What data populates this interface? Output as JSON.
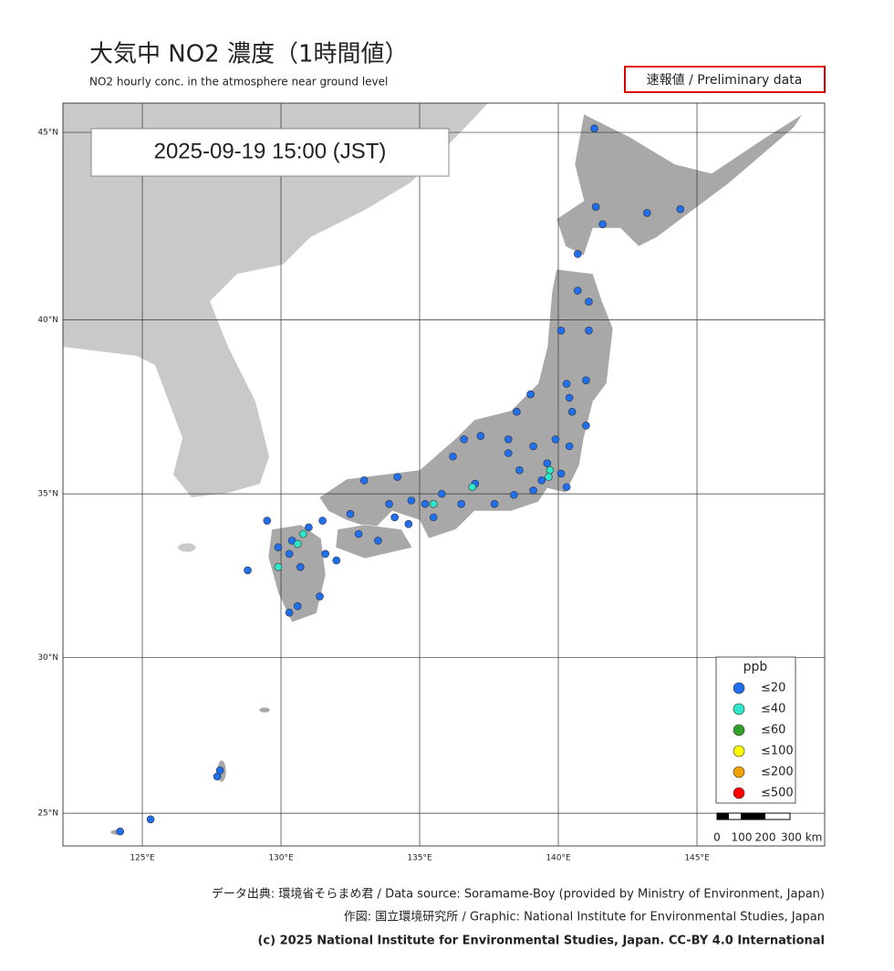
{
  "header": {
    "title": "大気中 NO2  濃度（1時間値）",
    "subtitle": "NO2 hourly conc. in the atmosphere near ground level",
    "status": "速報値 / Preliminary data"
  },
  "map": {
    "timestamp": "2025-09-19  15:00 (JST)",
    "lon_ticks": [
      {
        "value": 125,
        "label": "125°E"
      },
      {
        "value": 130,
        "label": "130°E"
      },
      {
        "value": 135,
        "label": "135°E"
      },
      {
        "value": 140,
        "label": "140°E"
      },
      {
        "value": 145,
        "label": "145°E"
      }
    ],
    "lat_ticks": [
      {
        "value": 25,
        "label": "25°N"
      },
      {
        "value": 30,
        "label": "30°N"
      },
      {
        "value": 35,
        "label": "35°N"
      },
      {
        "value": 40,
        "label": "40°N"
      },
      {
        "value": 45,
        "label": "45°N"
      }
    ],
    "legend": {
      "title": "ppb",
      "items": [
        {
          "label": "≤20",
          "color": "#1f6fef",
          "points": [
            [
              141.35,
              43.06
            ],
            [
              141.6,
              42.6
            ],
            [
              143.2,
              42.9
            ],
            [
              144.4,
              43.0
            ],
            [
              140.7,
              41.8
            ],
            [
              141.3,
              45.1
            ],
            [
              140.7,
              40.8
            ],
            [
              141.1,
              40.5
            ],
            [
              141.1,
              39.7
            ],
            [
              140.1,
              39.7
            ],
            [
              141.0,
              38.3
            ],
            [
              140.3,
              38.2
            ],
            [
              140.4,
              37.8
            ],
            [
              140.5,
              37.4
            ],
            [
              141.0,
              37.0
            ],
            [
              139.0,
              37.9
            ],
            [
              138.5,
              37.4
            ],
            [
              140.4,
              36.4
            ],
            [
              139.9,
              36.6
            ],
            [
              139.1,
              36.4
            ],
            [
              138.2,
              36.6
            ],
            [
              137.2,
              36.7
            ],
            [
              136.6,
              36.6
            ],
            [
              136.2,
              36.1
            ],
            [
              138.2,
              36.2
            ],
            [
              138.6,
              35.7
            ],
            [
              139.4,
              35.4
            ],
            [
              139.6,
              35.9
            ],
            [
              140.1,
              35.6
            ],
            [
              140.3,
              35.2
            ],
            [
              139.1,
              35.1
            ],
            [
              138.4,
              34.97
            ],
            [
              137.7,
              34.7
            ],
            [
              137.0,
              35.3
            ],
            [
              136.5,
              34.7
            ],
            [
              135.8,
              35.0
            ],
            [
              135.2,
              34.7
            ],
            [
              135.5,
              34.3
            ],
            [
              134.7,
              34.8
            ],
            [
              133.9,
              34.7
            ],
            [
              133.0,
              35.4
            ],
            [
              134.2,
              35.5
            ],
            [
              132.5,
              34.4
            ],
            [
              131.5,
              34.2
            ],
            [
              131.0,
              34.0
            ],
            [
              130.4,
              33.6
            ],
            [
              130.3,
              33.2
            ],
            [
              130.7,
              32.8
            ],
            [
              131.6,
              33.2
            ],
            [
              131.4,
              31.9
            ],
            [
              130.6,
              31.6
            ],
            [
              130.3,
              31.4
            ],
            [
              133.5,
              33.6
            ],
            [
              132.8,
              33.8
            ],
            [
              134.1,
              34.3
            ],
            [
              134.6,
              34.1
            ],
            [
              127.7,
              26.2
            ],
            [
              127.8,
              26.4
            ],
            [
              124.2,
              24.4
            ],
            [
              125.3,
              24.8
            ],
            [
              129.9,
              33.4
            ],
            [
              132.0,
              33.0
            ],
            [
              128.8,
              32.7
            ],
            [
              129.5,
              34.2
            ]
          ]
        },
        {
          "label": "≤40",
          "color": "#2de8c8",
          "points": [
            [
              139.7,
              35.7
            ],
            [
              139.65,
              35.5
            ],
            [
              135.5,
              34.7
            ],
            [
              136.9,
              35.2
            ],
            [
              130.8,
              33.8
            ],
            [
              130.6,
              33.5
            ],
            [
              129.9,
              32.8
            ]
          ]
        },
        {
          "label": "≤60",
          "color": "#33a02c",
          "points": []
        },
        {
          "label": "≤100",
          "color": "#ffff00",
          "points": []
        },
        {
          "label": "≤200",
          "color": "#f0a000",
          "points": []
        },
        {
          "label": "≤500",
          "color": "#ff0000",
          "points": []
        }
      ]
    },
    "scale_bar": {
      "labels": [
        "0",
        "100",
        "200",
        "300 km"
      ]
    }
  },
  "footer": {
    "source": "データ出典: 環境省そらまめ君 / Data source: Soramame-Boy (provided by Ministry of Environment, Japan)",
    "graphic": "作図: 国立環境研究所 / Graphic: National Institute for Environmental Studies, Japan",
    "license": "(c) 2025 National Institute for Environmental Studies, Japan. CC-BY 4.0 International"
  }
}
